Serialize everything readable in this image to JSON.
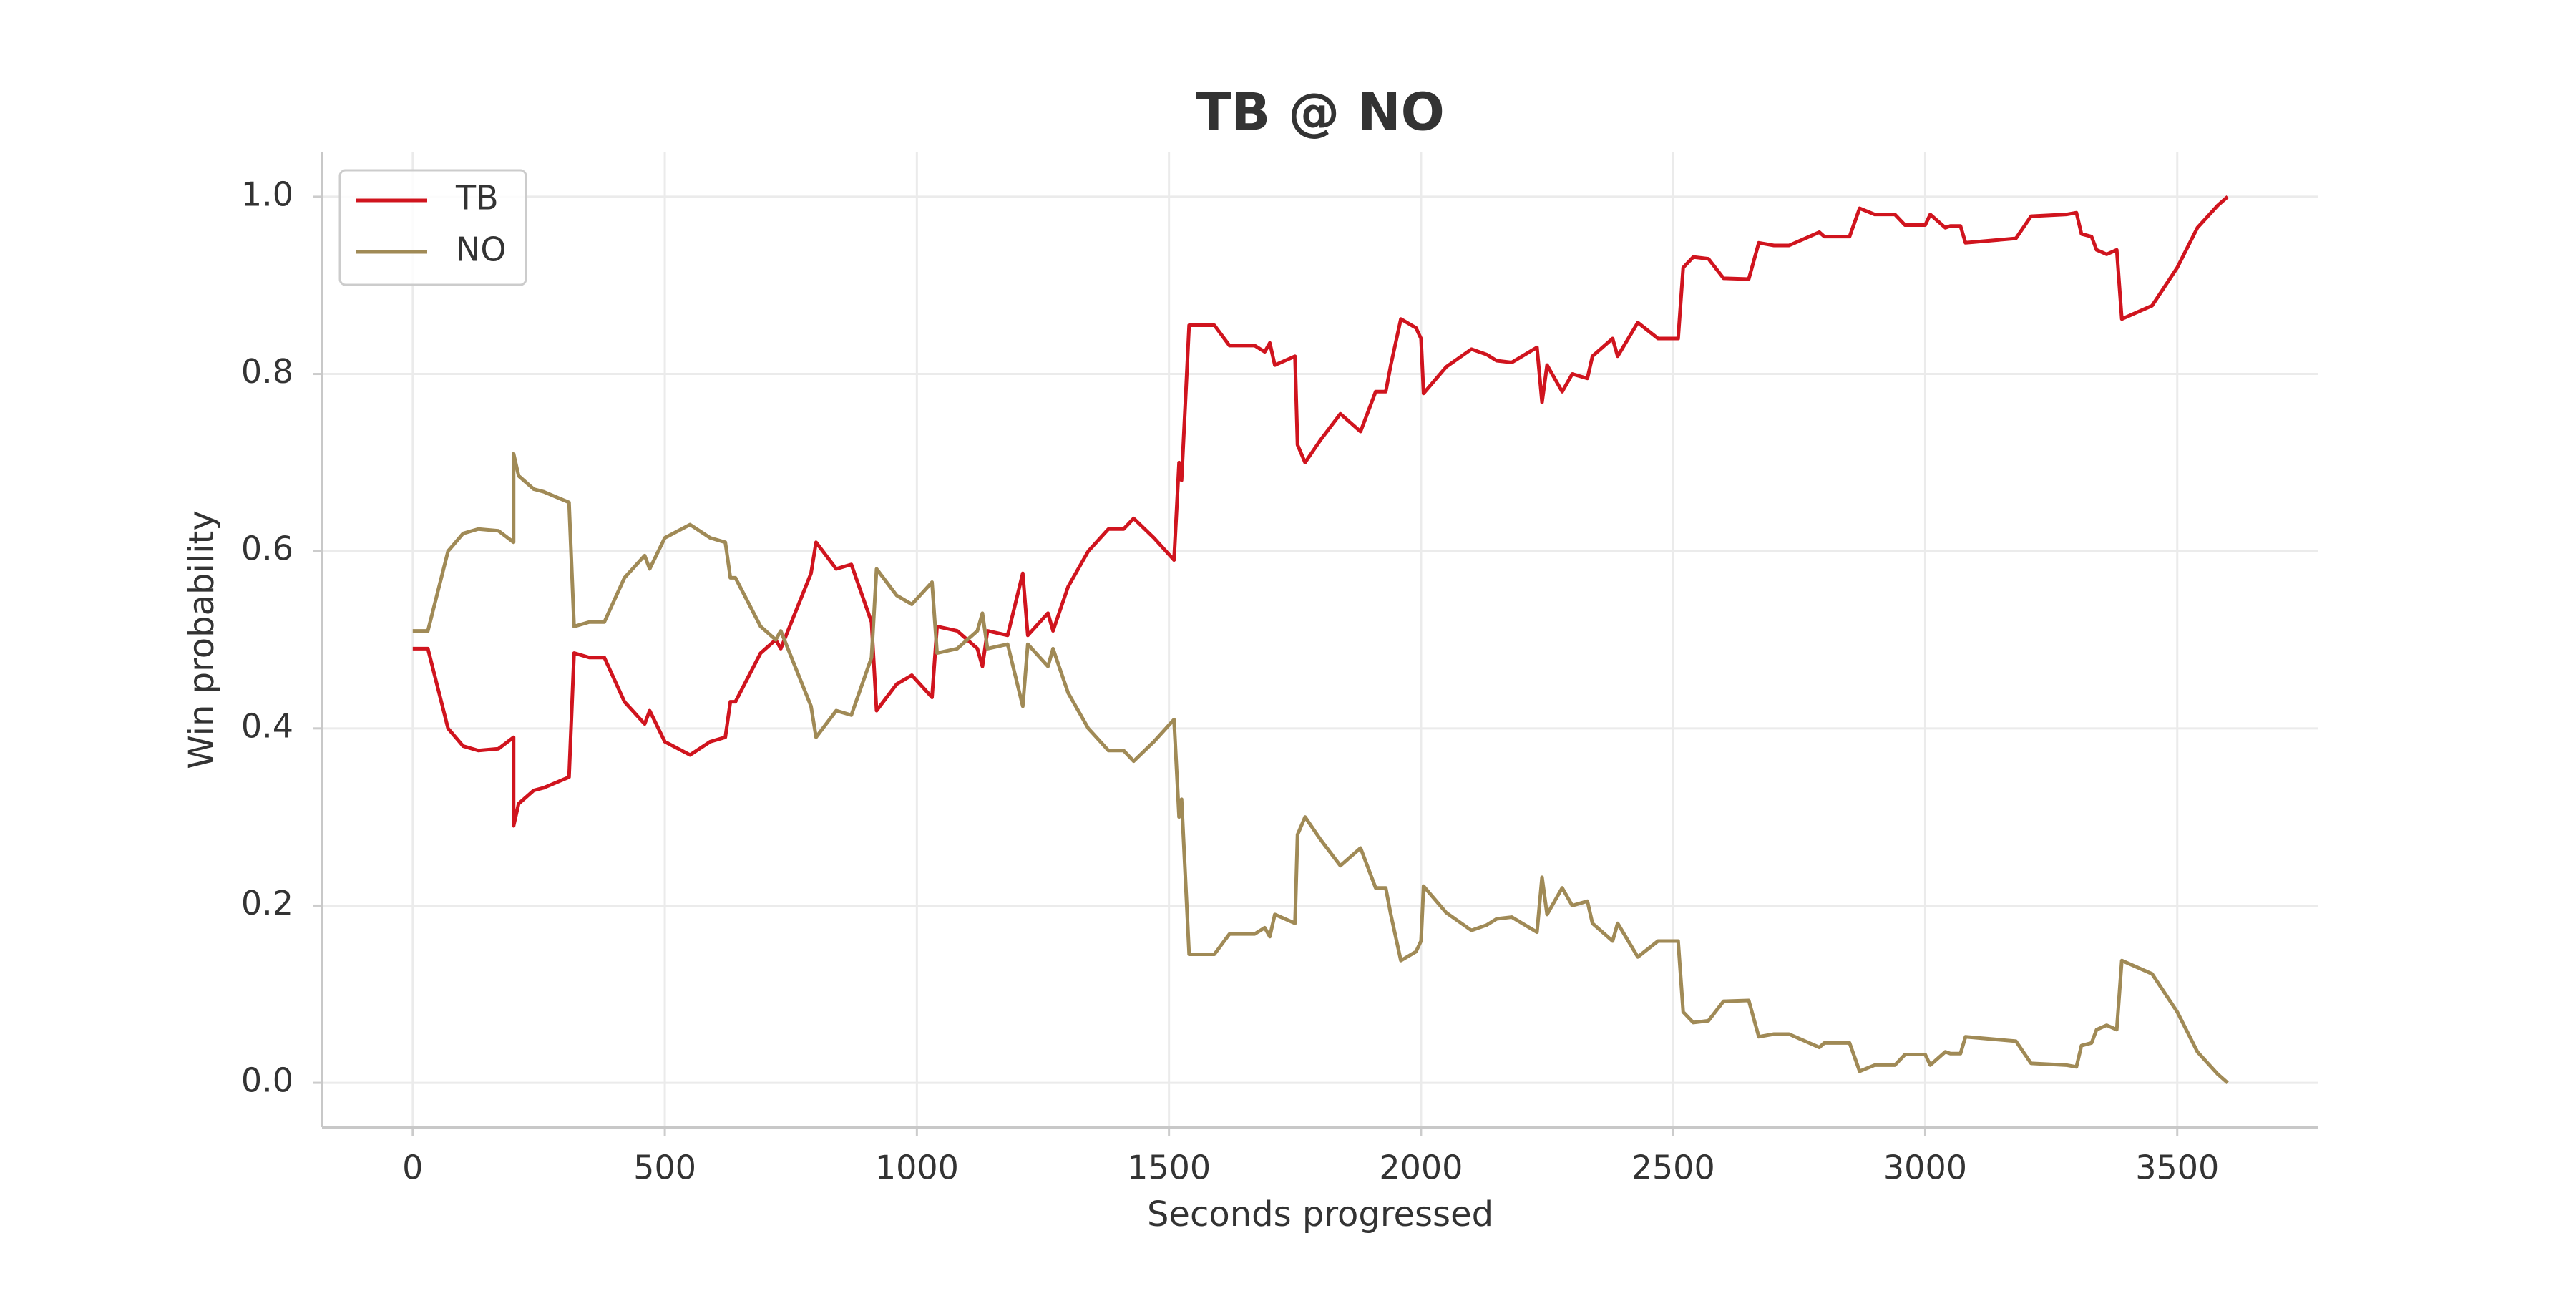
{
  "chart_data": {
    "type": "line",
    "title": "TB @ NO",
    "x_label": "Seconds progressed",
    "y_label": "Win probability",
    "x": [
      0,
      30,
      70,
      100,
      130,
      170,
      200,
      200,
      210,
      240,
      260,
      310,
      320,
      350,
      380,
      420,
      460,
      470,
      500,
      550,
      590,
      620,
      630,
      640,
      690,
      720,
      730,
      790,
      800,
      840,
      870,
      910,
      920,
      960,
      990,
      1030,
      1040,
      1080,
      1120,
      1130,
      1140,
      1180,
      1210,
      1220,
      1260,
      1270,
      1300,
      1340,
      1380,
      1410,
      1430,
      1470,
      1510,
      1520,
      1525,
      1540,
      1590,
      1620,
      1670,
      1690,
      1700,
      1710,
      1750,
      1755,
      1770,
      1800,
      1840,
      1880,
      1910,
      1930,
      1940,
      1960,
      1990,
      2000,
      2005,
      2050,
      2100,
      2130,
      2150,
      2180,
      2230,
      2240,
      2250,
      2280,
      2300,
      2330,
      2340,
      2380,
      2390,
      2430,
      2470,
      2510,
      2520,
      2540,
      2570,
      2600,
      2650,
      2670,
      2700,
      2730,
      2790,
      2800,
      2850,
      2870,
      2900,
      2940,
      2960,
      3000,
      3010,
      3040,
      3050,
      3070,
      3080,
      3180,
      3210,
      3280,
      3300,
      3310,
      3330,
      3340,
      3360,
      3380,
      3390,
      3450,
      3500,
      3540,
      3580,
      3600
    ],
    "series": [
      {
        "name": "TB",
        "color": "#d0141e",
        "values": [
          0.49,
          0.49,
          0.4,
          0.38,
          0.375,
          0.377,
          0.39,
          0.29,
          0.315,
          0.33,
          0.333,
          0.345,
          0.485,
          0.48,
          0.48,
          0.43,
          0.405,
          0.42,
          0.385,
          0.37,
          0.385,
          0.39,
          0.43,
          0.43,
          0.485,
          0.5,
          0.49,
          0.575,
          0.61,
          0.58,
          0.585,
          0.52,
          0.42,
          0.45,
          0.46,
          0.435,
          0.515,
          0.51,
          0.49,
          0.47,
          0.51,
          0.505,
          0.575,
          0.505,
          0.53,
          0.51,
          0.56,
          0.6,
          0.625,
          0.625,
          0.637,
          0.615,
          0.59,
          0.7,
          0.68,
          0.855,
          0.855,
          0.832,
          0.832,
          0.825,
          0.835,
          0.81,
          0.82,
          0.72,
          0.7,
          0.725,
          0.755,
          0.735,
          0.78,
          0.78,
          0.81,
          0.862,
          0.852,
          0.84,
          0.778,
          0.808,
          0.828,
          0.822,
          0.815,
          0.813,
          0.83,
          0.768,
          0.81,
          0.78,
          0.8,
          0.795,
          0.82,
          0.84,
          0.82,
          0.858,
          0.84,
          0.84,
          0.92,
          0.932,
          0.93,
          0.908,
          0.907,
          0.948,
          0.945,
          0.945,
          0.96,
          0.955,
          0.955,
          0.987,
          0.98,
          0.98,
          0.968,
          0.968,
          0.98,
          0.965,
          0.967,
          0.967,
          0.948,
          0.953,
          0.978,
          0.98,
          0.982,
          0.958,
          0.955,
          0.94,
          0.935,
          0.94,
          0.862,
          0.877,
          0.92,
          0.965,
          0.99,
          1.0
        ]
      },
      {
        "name": "NO",
        "color": "#a08a56",
        "values": [
          0.51,
          0.51,
          0.6,
          0.62,
          0.625,
          0.623,
          0.61,
          0.71,
          0.685,
          0.67,
          0.667,
          0.655,
          0.515,
          0.52,
          0.52,
          0.57,
          0.595,
          0.58,
          0.615,
          0.63,
          0.615,
          0.61,
          0.57,
          0.57,
          0.515,
          0.5,
          0.51,
          0.425,
          0.39,
          0.42,
          0.415,
          0.48,
          0.58,
          0.55,
          0.54,
          0.565,
          0.485,
          0.49,
          0.51,
          0.53,
          0.49,
          0.495,
          0.425,
          0.495,
          0.47,
          0.49,
          0.44,
          0.4,
          0.375,
          0.375,
          0.363,
          0.385,
          0.41,
          0.3,
          0.32,
          0.145,
          0.145,
          0.168,
          0.168,
          0.175,
          0.165,
          0.19,
          0.18,
          0.28,
          0.3,
          0.275,
          0.245,
          0.265,
          0.22,
          0.22,
          0.19,
          0.138,
          0.148,
          0.16,
          0.222,
          0.192,
          0.172,
          0.178,
          0.185,
          0.187,
          0.17,
          0.232,
          0.19,
          0.22,
          0.2,
          0.205,
          0.18,
          0.16,
          0.18,
          0.142,
          0.16,
          0.16,
          0.08,
          0.068,
          0.07,
          0.092,
          0.093,
          0.052,
          0.055,
          0.055,
          0.04,
          0.045,
          0.045,
          0.013,
          0.02,
          0.02,
          0.032,
          0.032,
          0.02,
          0.035,
          0.033,
          0.033,
          0.052,
          0.047,
          0.022,
          0.02,
          0.018,
          0.042,
          0.045,
          0.06,
          0.065,
          0.06,
          0.138,
          0.123,
          0.08,
          0.035,
          0.01,
          0.0
        ]
      }
    ],
    "xlim": [
      -180,
      3780
    ],
    "xticks": [
      0,
      500,
      1000,
      1500,
      2000,
      2500,
      3000,
      3500
    ],
    "ylim": [
      -0.05,
      1.05
    ],
    "yticks": [
      {
        "value": 0,
        "label": "0.0"
      },
      0.2,
      0.4,
      0.6,
      0.8,
      {
        "value": 1,
        "label": "1.0"
      }
    ],
    "grid": true,
    "legend": "upper left"
  }
}
